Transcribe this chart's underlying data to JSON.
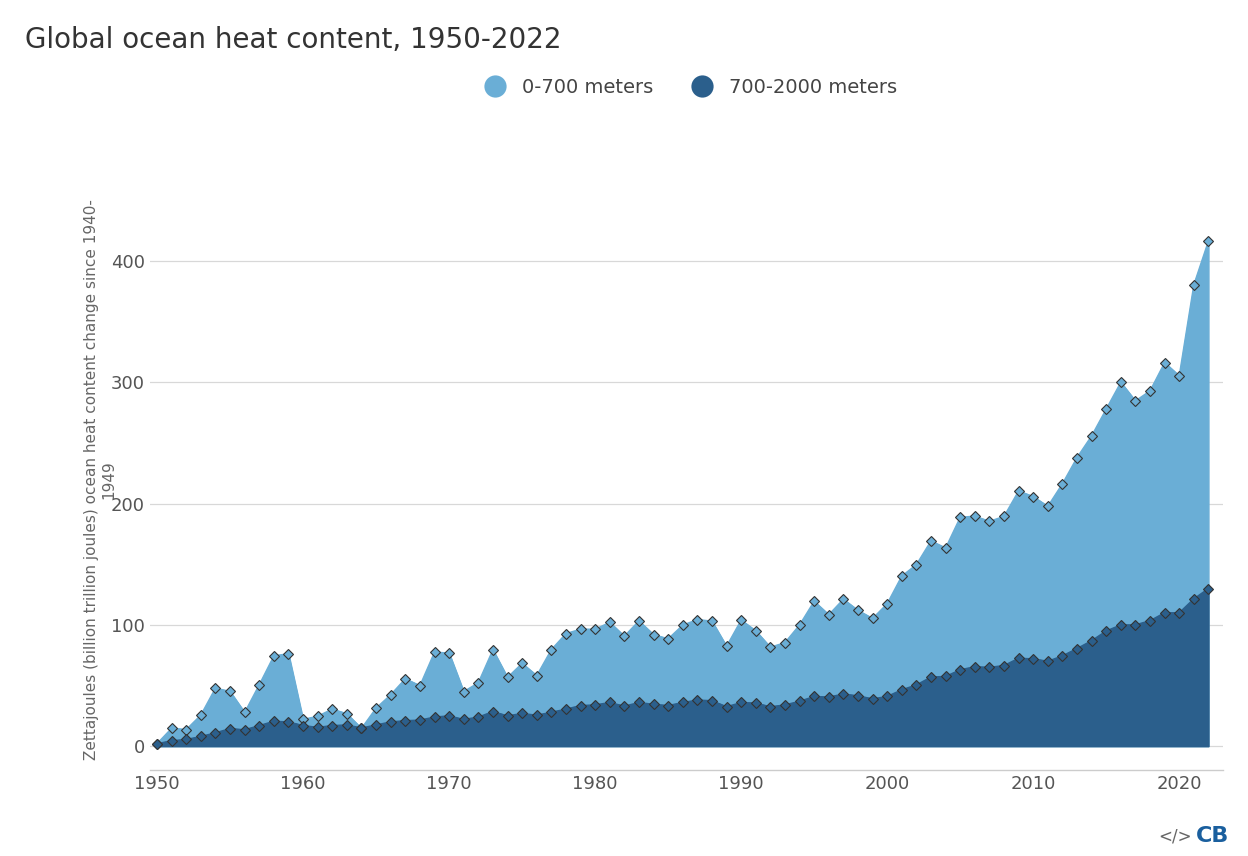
{
  "title": "Global ocean heat content, 1950-2022",
  "background_color": "#ffffff",
  "plot_background": "#ffffff",
  "grid_color": "#d8d8d8",
  "years": [
    1950,
    1951,
    1952,
    1953,
    1954,
    1955,
    1956,
    1957,
    1958,
    1959,
    1960,
    1961,
    1962,
    1963,
    1964,
    1965,
    1966,
    1967,
    1968,
    1969,
    1970,
    1971,
    1972,
    1973,
    1974,
    1975,
    1976,
    1977,
    1978,
    1979,
    1980,
    1981,
    1982,
    1983,
    1984,
    1985,
    1986,
    1987,
    1988,
    1989,
    1990,
    1991,
    1992,
    1993,
    1994,
    1995,
    1996,
    1997,
    1998,
    1999,
    2000,
    2001,
    2002,
    2003,
    2004,
    2005,
    2006,
    2007,
    2008,
    2009,
    2010,
    2011,
    2012,
    2013,
    2014,
    2015,
    2016,
    2017,
    2018,
    2019,
    2020,
    2021,
    2022
  ],
  "ohc_0_700": [
    2.1,
    14.8,
    13.7,
    25.7,
    47.9,
    45.1,
    27.8,
    50.7,
    74.5,
    76.2,
    22.0,
    24.7,
    30.6,
    26.7,
    14.7,
    31.4,
    42.4,
    55.6,
    49.9,
    77.5,
    76.8,
    45.0,
    52.3,
    79.5,
    56.7,
    68.3,
    58.2,
    79.6,
    92.8,
    96.5,
    96.4,
    102.1,
    90.7,
    103.3,
    92.0,
    88.5,
    99.8,
    104.4,
    103.1,
    82.4,
    104.0,
    95.1,
    81.6,
    85.4,
    100.0,
    119.5,
    108.4,
    121.2,
    112.0,
    105.3,
    117.5,
    140.3,
    149.7,
    169.3,
    163.4,
    188.7,
    189.7,
    185.4,
    189.5,
    210.5,
    205.8,
    197.8,
    216.4,
    238.0,
    255.9,
    278.0,
    300.1,
    284.7,
    293.0,
    316.3,
    305.4,
    380.5,
    416.6
  ],
  "ohc_700_2000": [
    2.0,
    4.5,
    5.5,
    8.0,
    11.0,
    14.5,
    13.5,
    17.0,
    20.5,
    20.0,
    17.0,
    15.5,
    17.0,
    17.5,
    15.0,
    17.5,
    20.0,
    21.0,
    21.5,
    24.0,
    25.0,
    22.0,
    24.0,
    28.5,
    25.0,
    27.0,
    25.5,
    28.0,
    30.5,
    33.5,
    34.0,
    36.0,
    33.0,
    36.0,
    34.5,
    33.5,
    36.0,
    38.0,
    37.5,
    32.5,
    36.0,
    35.5,
    32.5,
    34.0,
    37.0,
    41.0,
    40.5,
    43.0,
    41.5,
    39.0,
    41.0,
    46.5,
    50.5,
    57.0,
    57.5,
    63.0,
    65.5,
    65.0,
    66.5,
    72.5,
    72.0,
    70.0,
    74.5,
    80.5,
    87.0,
    95.0,
    100.0,
    100.0,
    103.5,
    110.0,
    110.0,
    121.5,
    130.0
  ],
  "color_0_700": "#6aaed6",
  "color_700_2000": "#2b5f8c",
  "marker_edge": "#333333",
  "ylim": [
    -20,
    460
  ],
  "yticks": [
    0,
    100,
    200,
    300,
    400
  ],
  "xlim": [
    1949.5,
    2023
  ],
  "xticks": [
    1950,
    1960,
    1970,
    1980,
    1990,
    2000,
    2010,
    2020
  ],
  "legend_label_0_700": "0-700 meters",
  "legend_label_700_2000": "700-2000 meters",
  "title_fontsize": 20,
  "axis_fontsize": 11,
  "tick_fontsize": 13,
  "legend_fontsize": 14
}
